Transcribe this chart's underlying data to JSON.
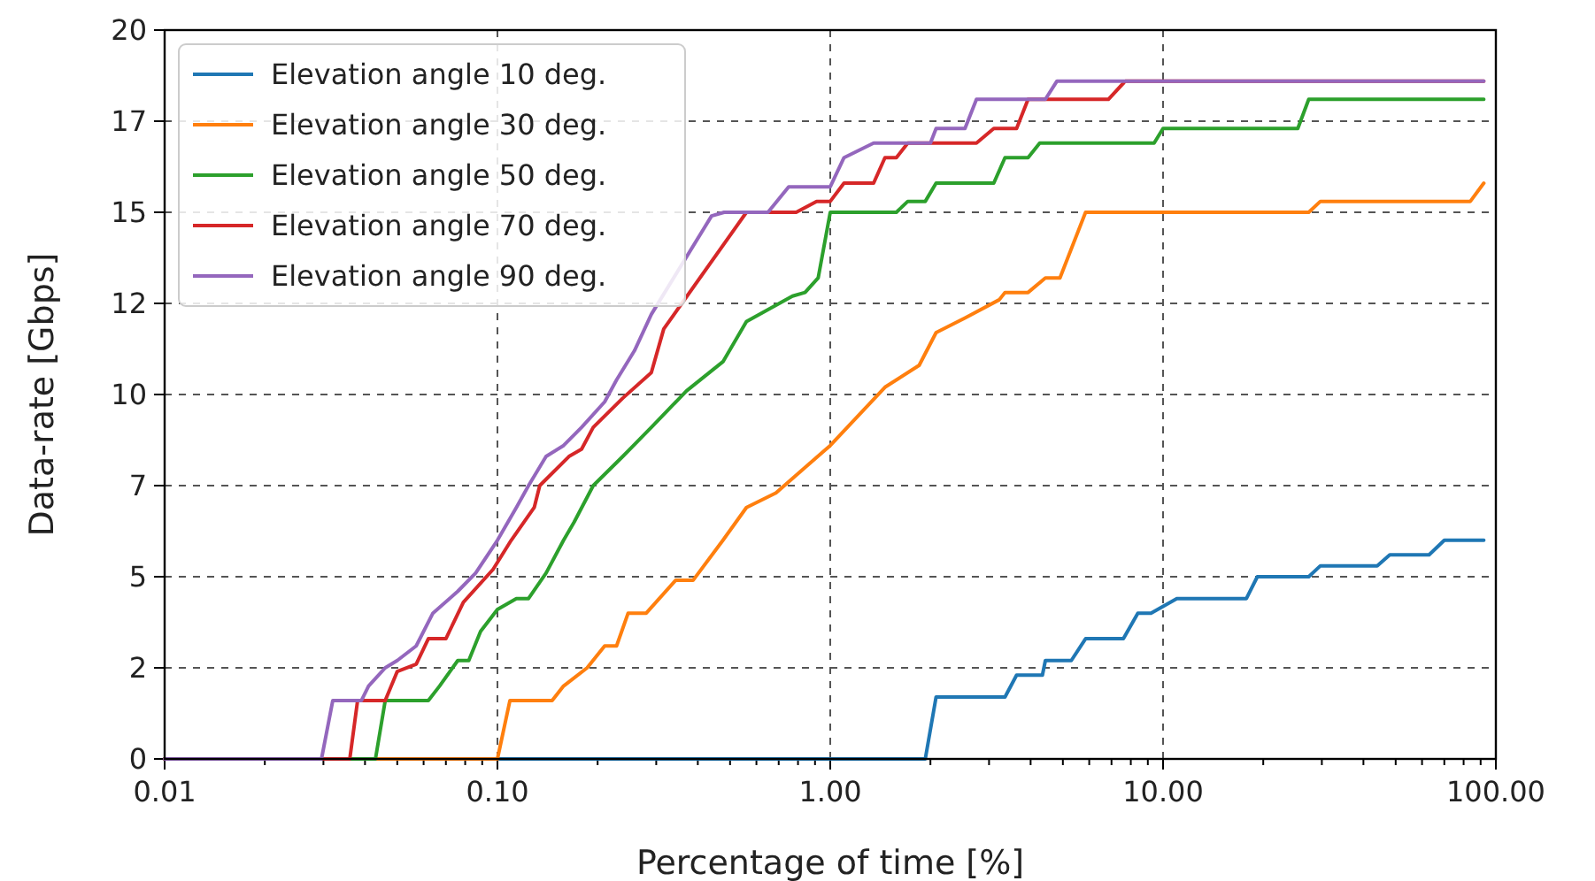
{
  "chart_data": {
    "type": "line",
    "xlabel": "Percentage of time [%]",
    "ylabel": "Data-rate [Gbps]",
    "log": "x",
    "grid": true,
    "legend": "top left",
    "line_style": "solid",
    "marker": "none",
    "xlim": [
      0.01,
      100
    ],
    "ylim": [
      0,
      20
    ],
    "xticks": [
      {
        "value": 0.01,
        "label": "0.01"
      },
      {
        "value": 0.02,
        "label": null
      },
      {
        "value": 0.03,
        "label": null
      },
      {
        "value": 0.04,
        "label": null
      },
      {
        "value": 0.05,
        "label": null
      },
      {
        "value": 0.06,
        "label": null
      },
      {
        "value": 0.07,
        "label": null
      },
      {
        "value": 0.08,
        "label": null
      },
      {
        "value": 0.09,
        "label": null
      },
      {
        "value": 0.1,
        "label": "0.10"
      },
      {
        "value": 0.2,
        "label": null
      },
      {
        "value": 0.3,
        "label": null
      },
      {
        "value": 0.4,
        "label": null
      },
      {
        "value": 0.5,
        "label": null
      },
      {
        "value": 0.6,
        "label": null
      },
      {
        "value": 0.7,
        "label": null
      },
      {
        "value": 0.8,
        "label": null
      },
      {
        "value": 0.9,
        "label": null
      },
      {
        "value": 1,
        "label": "1.00"
      },
      {
        "value": 2,
        "label": null
      },
      {
        "value": 3,
        "label": null
      },
      {
        "value": 4,
        "label": null
      },
      {
        "value": 5,
        "label": null
      },
      {
        "value": 6,
        "label": null
      },
      {
        "value": 7,
        "label": null
      },
      {
        "value": 8,
        "label": null
      },
      {
        "value": 9,
        "label": null
      },
      {
        "value": 10,
        "label": "10.00"
      },
      {
        "value": 20,
        "label": null
      },
      {
        "value": 30,
        "label": null
      },
      {
        "value": 40,
        "label": null
      },
      {
        "value": 50,
        "label": null
      },
      {
        "value": 60,
        "label": null
      },
      {
        "value": 70,
        "label": null
      },
      {
        "value": 80,
        "label": null
      },
      {
        "value": 90,
        "label": null
      },
      {
        "value": 100,
        "label": "100.00"
      }
    ],
    "yticks": [
      0,
      {
        "value": 2.5,
        "label": "2"
      },
      5,
      {
        "value": 7.5,
        "label": "7"
      },
      10,
      {
        "value": 12.5,
        "label": "12"
      },
      15,
      {
        "value": 17.5,
        "label": "17"
      },
      20
    ],
    "series": [
      {
        "name": "Elevation angle 10 deg.",
        "color": "#1f77b4",
        "x": [
          0.01,
          1.93,
          2.08,
          3.35,
          3.63,
          4.34,
          4.43,
          5.3,
          5.85,
          7.6,
          8.4,
          9.2,
          11,
          17.8,
          19.2,
          27.4,
          29.7,
          44,
          48,
          63,
          70,
          92
        ],
        "values": [
          0,
          0,
          1.7,
          1.7,
          2.3,
          2.3,
          2.7,
          2.7,
          3.3,
          3.3,
          4,
          4,
          4.4,
          4.4,
          5,
          5,
          5.3,
          5.3,
          5.6,
          5.6,
          6,
          6
        ]
      },
      {
        "name": "Elevation angle 30 deg.",
        "color": "#ff7f0e",
        "x": [
          0.01,
          0.1,
          0.109,
          0.146,
          0.158,
          0.186,
          0.21,
          0.228,
          0.247,
          0.28,
          0.343,
          0.387,
          0.476,
          0.56,
          0.687,
          0.84,
          1,
          1.46,
          1.85,
          2.08,
          2.54,
          3.22,
          3.35,
          3.93,
          4.43,
          4.9,
          5.85,
          27.4,
          29.7,
          83.8,
          92
        ],
        "values": [
          0,
          0,
          1.6,
          1.6,
          2,
          2.5,
          3.1,
          3.1,
          4,
          4,
          4.9,
          4.9,
          6,
          6.9,
          7.3,
          8,
          8.6,
          10.2,
          10.8,
          11.7,
          12.1,
          12.6,
          12.8,
          12.8,
          13.2,
          13.2,
          15,
          15,
          15.3,
          15.3,
          15.8
        ]
      },
      {
        "name": "Elevation angle 50 deg.",
        "color": "#2ca02c",
        "x": [
          0.01,
          0.043,
          0.046,
          0.062,
          0.067,
          0.076,
          0.082,
          0.089,
          0.1,
          0.114,
          0.124,
          0.14,
          0.158,
          0.17,
          0.194,
          0.238,
          0.29,
          0.37,
          0.476,
          0.56,
          0.77,
          0.84,
          0.92,
          1,
          1.58,
          1.71,
          1.93,
          2.08,
          3.1,
          3.35,
          3.93,
          4.26,
          9.4,
          10,
          25.4,
          27.4,
          92
        ],
        "values": [
          0,
          0,
          1.6,
          1.6,
          2,
          2.7,
          2.7,
          3.5,
          4.1,
          4.4,
          4.4,
          5.1,
          6,
          6.5,
          7.5,
          8.3,
          9.1,
          10.1,
          10.9,
          12,
          12.7,
          12.8,
          13.2,
          15,
          15,
          15.3,
          15.3,
          15.8,
          15.8,
          16.5,
          16.5,
          16.9,
          16.9,
          17.3,
          17.3,
          18.1,
          18.1
        ]
      },
      {
        "name": "Elevation angle 70 deg.",
        "color": "#d62728",
        "x": [
          0.01,
          0.036,
          0.038,
          0.046,
          0.05,
          0.057,
          0.062,
          0.07,
          0.079,
          0.097,
          0.11,
          0.129,
          0.134,
          0.164,
          0.179,
          0.194,
          0.238,
          0.29,
          0.316,
          0.56,
          0.79,
          0.91,
          1,
          1.1,
          1.35,
          1.46,
          1.58,
          1.71,
          2.75,
          3.1,
          3.63,
          3.93,
          6.85,
          7.7,
          92
        ],
        "values": [
          0,
          0,
          1.6,
          1.6,
          2.4,
          2.6,
          3.3,
          3.3,
          4.3,
          5.2,
          6,
          6.9,
          7.5,
          8.3,
          8.5,
          9.1,
          9.9,
          10.6,
          11.8,
          15,
          15,
          15.3,
          15.3,
          15.8,
          15.8,
          16.5,
          16.5,
          16.9,
          16.9,
          17.3,
          17.3,
          18.1,
          18.1,
          18.6,
          18.6
        ]
      },
      {
        "name": "Elevation angle 90 deg.",
        "color": "#9467bd",
        "x": [
          0.01,
          0.0296,
          0.032,
          0.039,
          0.041,
          0.046,
          0.05,
          0.057,
          0.064,
          0.076,
          0.086,
          0.1,
          0.114,
          0.124,
          0.14,
          0.158,
          0.179,
          0.21,
          0.228,
          0.258,
          0.29,
          0.44,
          0.48,
          0.65,
          0.75,
          0.84,
          1,
          1.1,
          1.35,
          2,
          2.08,
          2.54,
          2.75,
          4.43,
          4.8,
          92
        ],
        "values": [
          0,
          0,
          1.6,
          1.6,
          2,
          2.5,
          2.7,
          3.1,
          4,
          4.6,
          5.1,
          6,
          6.9,
          7.5,
          8.3,
          8.6,
          9.1,
          9.8,
          10.4,
          11.2,
          12.2,
          14.9,
          15,
          15,
          15.7,
          15.7,
          15.7,
          16.5,
          16.9,
          16.9,
          17.3,
          17.3,
          18.1,
          18.1,
          18.6,
          18.6
        ]
      }
    ]
  }
}
